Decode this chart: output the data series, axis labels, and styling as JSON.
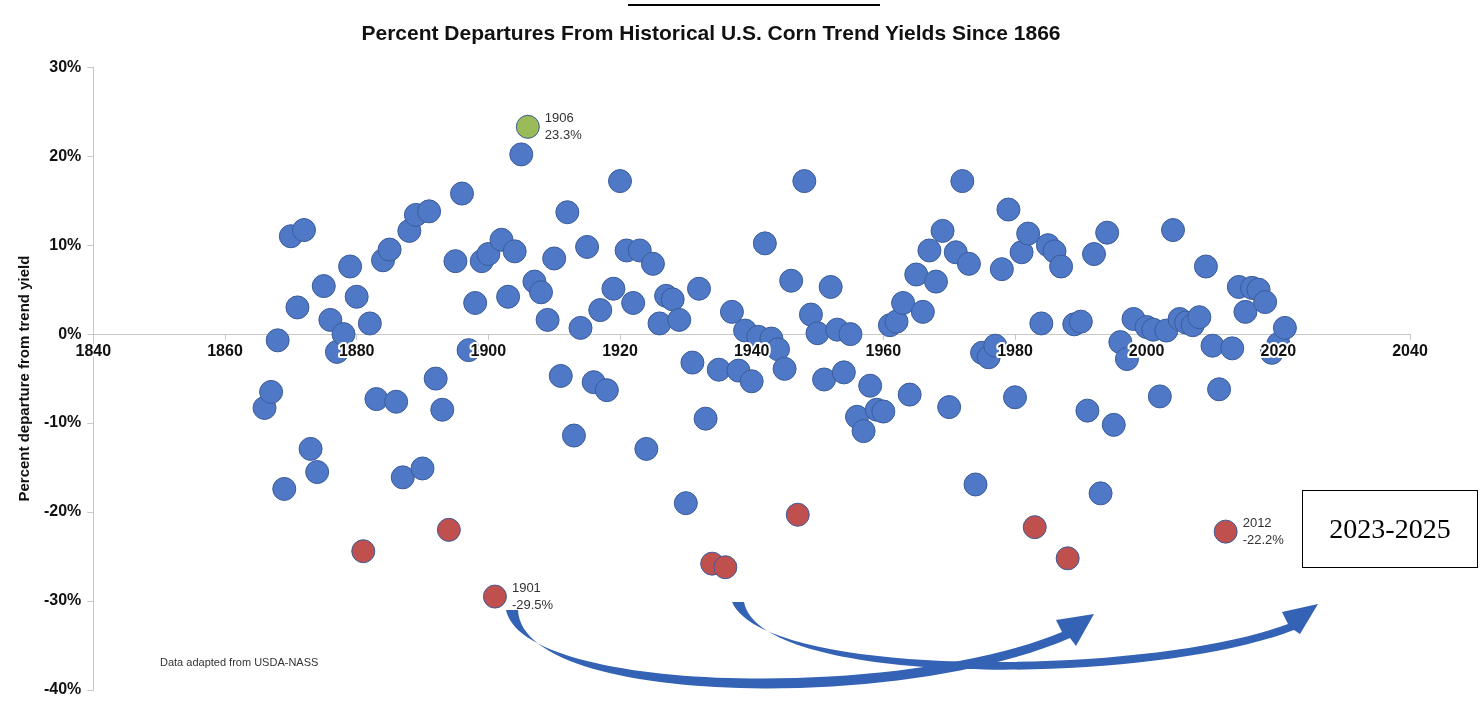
{
  "chart_data": {
    "type": "scatter",
    "title": "Percent Departures From Historical U.S. Corn Trend Yields Since 1866",
    "ylabel": "Percent departure from trend yield",
    "xlim": [
      1840,
      2040
    ],
    "xticks": [
      1840,
      1860,
      1880,
      1900,
      1920,
      1940,
      1960,
      1980,
      2000,
      2020,
      2040
    ],
    "ylim": [
      -40,
      30
    ],
    "yticks": [
      {
        "value": -40,
        "label": "-40%"
      },
      {
        "value": -30,
        "label": "-30%"
      },
      {
        "value": -20,
        "label": "-20%"
      },
      {
        "value": -10,
        "label": "-10%"
      },
      {
        "value": 0,
        "label": "0%"
      },
      {
        "value": 10,
        "label": "10%"
      },
      {
        "value": 20,
        "label": "20%"
      },
      {
        "value": 30,
        "label": "30%"
      }
    ],
    "grid": false,
    "legend": false,
    "marker": "circle",
    "series": [
      {
        "color": "#4f79c6",
        "x": [
          1866,
          1867,
          1868,
          1869,
          1870,
          1871,
          1872,
          1873,
          1874,
          1875,
          1876,
          1877,
          1878,
          1879,
          1880,
          1882,
          1883,
          1884,
          1885,
          1886,
          1887,
          1888,
          1889,
          1890,
          1891,
          1892,
          1893,
          1895,
          1896,
          1897,
          1898,
          1899,
          1900,
          1902,
          1903,
          1904,
          1905,
          1907,
          1908,
          1909,
          1910,
          1911,
          1912,
          1913,
          1914,
          1915,
          1916,
          1917,
          1918,
          1919,
          1920,
          1921,
          1922,
          1923,
          1924,
          1925,
          1926,
          1927,
          1928,
          1929,
          1930,
          1931,
          1932,
          1933,
          1935,
          1937,
          1938,
          1939,
          1940,
          1941,
          1942,
          1943,
          1944,
          1945,
          1946,
          1948,
          1949,
          1950,
          1951,
          1952,
          1953,
          1954,
          1955,
          1956,
          1957,
          1958,
          1959,
          1960,
          1961,
          1962,
          1963,
          1964,
          1965,
          1966,
          1967,
          1968,
          1969,
          1970,
          1971,
          1972,
          1973,
          1974,
          1975,
          1976,
          1977,
          1978,
          1979,
          1980,
          1981,
          1982,
          1984,
          1985,
          1986,
          1987,
          1989,
          1990,
          1991,
          1992,
          1993,
          1994,
          1995,
          1996,
          1997,
          1998,
          2000,
          2001,
          2002,
          2003,
          2004,
          2005,
          2006,
          2007,
          2008,
          2009,
          2010,
          2011,
          2013,
          2014,
          2015,
          2016,
          2017,
          2018,
          2019,
          2020,
          2021
        ],
        "values": [
          -8.3,
          -6.5,
          -0.7,
          -17.4,
          11.0,
          3.0,
          11.7,
          -12.9,
          -15.5,
          5.4,
          1.6,
          -2.0,
          0.0,
          7.6,
          4.2,
          1.2,
          -7.3,
          8.3,
          9.5,
          -7.6,
          -16.1,
          11.6,
          13.4,
          -15.1,
          13.8,
          -5.0,
          -8.5,
          8.2,
          15.8,
          -1.8,
          3.5,
          8.2,
          9.0,
          10.6,
          4.2,
          9.3,
          20.2,
          5.9,
          4.7,
          1.6,
          8.5,
          -4.7,
          13.7,
          -11.4,
          0.7,
          9.8,
          -5.4,
          2.7,
          -6.3,
          5.1,
          17.2,
          9.4,
          3.5,
          9.4,
          -12.9,
          7.9,
          1.2,
          4.3,
          3.9,
          1.6,
          -19.0,
          -3.2,
          5.1,
          -9.5,
          -4.0,
          2.5,
          -4.1,
          0.4,
          -5.3,
          -0.3,
          10.2,
          -0.5,
          -1.7,
          -3.9,
          6.0,
          17.2,
          2.2,
          0.1,
          -5.1,
          5.3,
          0.5,
          -4.3,
          0.0,
          -9.3,
          -10.9,
          -5.8,
          -8.5,
          -8.7,
          1.0,
          1.4,
          3.5,
          -6.8,
          6.7,
          2.5,
          9.4,
          5.9,
          11.6,
          -8.2,
          9.2,
          17.2,
          7.9,
          -16.9,
          -2.1,
          -2.6,
          -1.3,
          7.3,
          14.0,
          -7.1,
          9.2,
          11.3,
          1.2,
          10.0,
          9.3,
          7.6,
          1.1,
          1.4,
          -8.6,
          9.0,
          -17.9,
          11.4,
          -10.2,
          -0.9,
          -2.8,
          1.7,
          0.8,
          0.5,
          -7.0,
          0.4,
          11.7,
          1.7,
          1.3,
          1.0,
          1.9,
          7.6,
          -1.3,
          -6.2,
          -1.6,
          5.3,
          2.5,
          5.2,
          5.0,
          3.6,
          -2.1,
          -1.1,
          0.7
        ]
      },
      {
        "color": "#c0504d",
        "x": [
          1881,
          1894,
          1901,
          1934,
          1936,
          1947,
          1983,
          1988,
          2012
        ],
        "values": [
          -24.4,
          -22.0,
          -29.5,
          -25.8,
          -26.2,
          -20.3,
          -21.7,
          -25.2,
          -22.2
        ]
      },
      {
        "color": "#9bbb59",
        "x": [
          1906
        ],
        "values": [
          23.3
        ]
      }
    ],
    "annotations": [
      {
        "text": "1906\n23.3%",
        "x": 1906,
        "y": 23.3
      },
      {
        "text": "1901\n-29.5%",
        "x": 1901,
        "y": -29.5
      },
      {
        "text": "2012\n-22.2%",
        "x": 2012,
        "y": -22.2
      },
      "Data adapted from USDA-NASS",
      "2023-2025"
    ]
  }
}
